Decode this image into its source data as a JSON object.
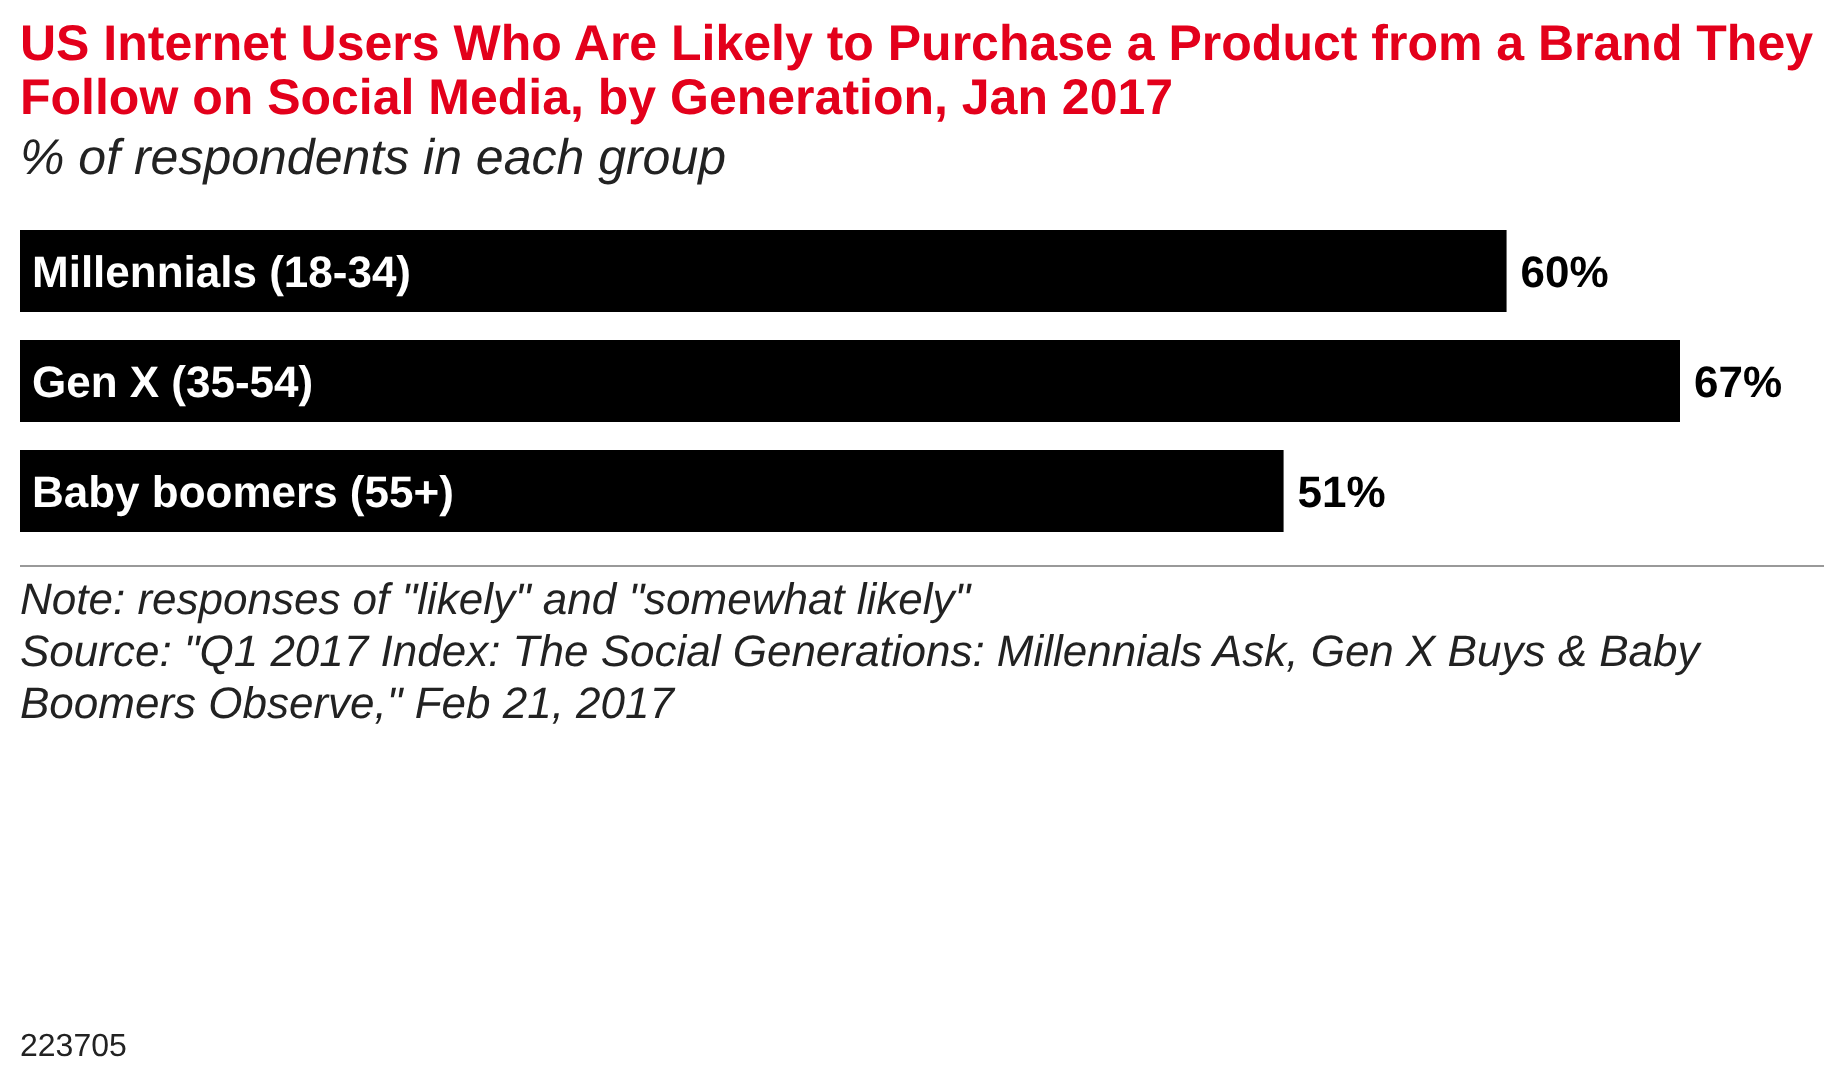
{
  "chart_data": {
    "type": "bar",
    "orientation": "horizontal",
    "title": "US Internet Users Who Are Likely to Purchase a Product from a Brand They Follow on Social Media, by Generation, Jan 2017",
    "subtitle": "% of respondents in each group",
    "categories": [
      "Millennials (18-34)",
      "Gen X (35-54)",
      "Baby boomers (55+)"
    ],
    "values": [
      60,
      67,
      51
    ],
    "value_labels": [
      "60%",
      "67%",
      "51%"
    ],
    "color": "#000000",
    "annotations": [
      "Note: responses of \"likely\" and \"somewhat likely\"",
      "Source: \"Q1 2017 Index: The Social Generations: Millennials Ask, Gen X Buys & Baby Boomers Observe,\" Feb 21, 2017",
      "223705"
    ]
  }
}
